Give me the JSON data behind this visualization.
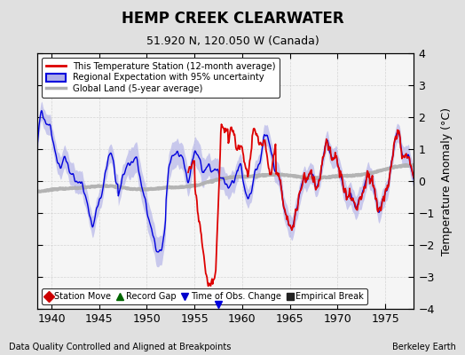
{
  "title": "HEMP CREEK CLEARWATER",
  "subtitle": "51.920 N, 120.050 W (Canada)",
  "ylabel": "Temperature Anomaly (°C)",
  "xlabel_note": "Data Quality Controlled and Aligned at Breakpoints",
  "credit": "Berkeley Earth",
  "xlim": [
    1938.5,
    1978.0
  ],
  "ylim": [
    -4,
    4
  ],
  "yticks": [
    -4,
    -3,
    -2,
    -1,
    0,
    1,
    2,
    3,
    4
  ],
  "xticks": [
    1940,
    1945,
    1950,
    1955,
    1960,
    1965,
    1970,
    1975
  ],
  "bg_color": "#e0e0e0",
  "plot_bg_color": "#f5f5f5",
  "regional_line_color": "#0000dd",
  "regional_fill_color": "#b0b0e8",
  "station_line_color": "#dd0000",
  "global_line_color": "#b0b0b0",
  "legend_station": "This Temperature Station (12-month average)",
  "legend_regional": "Regional Expectation with 95% uncertainty",
  "legend_global": "Global Land (5-year average)",
  "marker_legend": [
    {
      "label": "Station Move",
      "color": "#cc0000",
      "marker": "D"
    },
    {
      "label": "Record Gap",
      "color": "#006600",
      "marker": "^"
    },
    {
      "label": "Time of Obs. Change",
      "color": "#0000cc",
      "marker": "v"
    },
    {
      "label": "Empirical Break",
      "color": "#222222",
      "marker": "s"
    }
  ]
}
